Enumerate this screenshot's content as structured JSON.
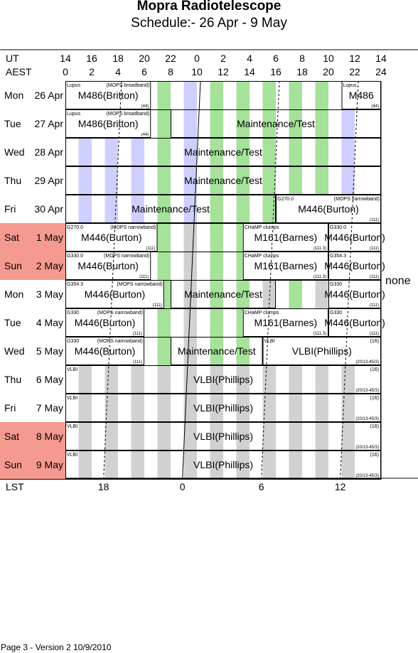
{
  "title": "Mopra Radiotelescope",
  "subtitle": "Schedule:- 26 Apr - 9  May",
  "axes": {
    "ut_label": "UT",
    "aest_label": "AEST",
    "ut_ticks": [
      "14",
      "16",
      "18",
      "20",
      "22",
      "0",
      "2",
      "4",
      "6",
      "8",
      "10",
      "12",
      "14"
    ],
    "aest_ticks": [
      "0",
      "2",
      "4",
      "6",
      "8",
      "10",
      "12",
      "14",
      "16",
      "18",
      "20",
      "22",
      "24"
    ],
    "lst_label": "LST",
    "lst_ticks": [
      {
        "label": "18",
        "aest": 2.9
      },
      {
        "label": "0",
        "aest": 8.9
      },
      {
        "label": "6",
        "aest": 14.9
      },
      {
        "label": "12",
        "aest": 20.9
      }
    ]
  },
  "colors": {
    "weekend": "#f59a90",
    "green": "#a6e29a",
    "blue": "#cfcfff",
    "gray": "#d1d1d1",
    "border": "#000000"
  },
  "bands": [
    {
      "color": "blue",
      "start": 1,
      "end": 2
    },
    {
      "color": "blue",
      "start": 3,
      "end": 4
    },
    {
      "color": "blue",
      "start": 5,
      "end": 6
    },
    {
      "color": "green",
      "start": 7,
      "end": 8
    },
    {
      "color": "blue",
      "start": 9,
      "end": 10
    },
    {
      "color": "green",
      "start": 11,
      "end": 12
    },
    {
      "color": "green",
      "start": 13,
      "end": 14
    },
    {
      "color": "green",
      "start": 15,
      "end": 16
    },
    {
      "color": "green",
      "start": 17,
      "end": 18
    },
    {
      "color": "green",
      "start": 19,
      "end": 20
    },
    {
      "color": "blue",
      "start": 21,
      "end": 22
    }
  ],
  "days": [
    {
      "name": "Mon",
      "date": "26 Apr",
      "weekend": false,
      "blocks": [
        {
          "start": 0,
          "end": 6.5,
          "main": "M486(Britton)",
          "tl": "Lupus",
          "tc": "(MOPS broadband)",
          "br": "(44)",
          "fill": "white"
        },
        {
          "start": 21,
          "end": 24,
          "main": "M486",
          "tl": "Lupus",
          "tc": "",
          "br": "(44)",
          "fill": "white"
        }
      ]
    },
    {
      "name": "Tue",
      "date": "27 Apr",
      "weekend": false,
      "blocks": [
        {
          "start": 0,
          "end": 6.5,
          "main": "M486(Britton)",
          "tl": "Lupus",
          "tc": "(MOPS broadband)",
          "br": "(44)",
          "fill": "white"
        },
        {
          "start": 8,
          "end": 24,
          "main": "Maintenance/Test",
          "tl": "",
          "tc": "",
          "br": "",
          "fill": "none"
        }
      ]
    },
    {
      "name": "Wed",
      "date": "28 Apr",
      "weekend": false,
      "blocks": [
        {
          "start": 0,
          "end": 24,
          "main": "Maintenance/Test",
          "tl": "",
          "tc": "",
          "br": "",
          "fill": "none"
        }
      ]
    },
    {
      "name": "Thu",
      "date": "29 Apr",
      "weekend": false,
      "blocks": [
        {
          "start": 0,
          "end": 24,
          "main": "Maintenance/Test",
          "tl": "",
          "tc": "",
          "br": "",
          "fill": "none"
        }
      ]
    },
    {
      "name": "Fri",
      "date": "30 Apr",
      "weekend": false,
      "blocks": [
        {
          "start": 0,
          "end": 16,
          "main": "Maintenance/Test",
          "tl": "",
          "tc": "",
          "br": "",
          "fill": "none"
        },
        {
          "start": 16,
          "end": 24,
          "main": "M446(Burton)",
          "tl": "G270.0",
          "tc": "(MOPS narrowband)",
          "br": "(111)",
          "fill": "white"
        }
      ]
    },
    {
      "name": "Sat",
      "date": "1 May",
      "weekend": true,
      "blocks": [
        {
          "start": 0,
          "end": 7,
          "main": "M446(Burton)",
          "tl": "G270.0",
          "tc": "(MOPS narrowband)",
          "br": "(111)",
          "fill": "white"
        },
        {
          "start": 13.5,
          "end": 20,
          "main": "M161(Barnes)",
          "tl": "CHaMP clumps",
          "tc": "",
          "br": "(111.3)",
          "fill": "white"
        },
        {
          "start": 20,
          "end": 24,
          "main": "M446(Burton)",
          "tl": "G330.0",
          "tc": "",
          "br": "(111)",
          "fill": "white"
        }
      ]
    },
    {
      "name": "Sun",
      "date": "2 May",
      "weekend": true,
      "blocks": [
        {
          "start": 0,
          "end": 6.5,
          "main": "M446(Burton)",
          "tl": "G330.0",
          "tc": "(MOPS narrowband)",
          "br": "(111)",
          "fill": "white"
        },
        {
          "start": 13.5,
          "end": 20,
          "main": "M161(Barnes)",
          "tl": "CHaMP clumps",
          "tc": "",
          "br": "(111.3)",
          "fill": "white"
        },
        {
          "start": 20,
          "end": 24,
          "main": "M446(Burton)",
          "tl": "G354.3",
          "tc": "",
          "br": "(111)",
          "fill": "white"
        }
      ]
    },
    {
      "name": "Mon",
      "date": "3 May",
      "weekend": false,
      "blocks": [
        {
          "start": 0,
          "end": 7.5,
          "main": "M446(Burton)",
          "tl": "G354.3",
          "tc": "(MOPS narrowband)",
          "br": "(111)",
          "fill": "white"
        },
        {
          "start": 8,
          "end": 16,
          "main": "Maintenance/Test",
          "tl": "",
          "tc": "",
          "br": "",
          "fill": "none"
        },
        {
          "start": 20,
          "end": 24,
          "main": "M446(Burton)",
          "tl": "G330",
          "tc": "",
          "br": "(111)",
          "fill": "white"
        }
      ]
    },
    {
      "name": "Tue",
      "date": "4 May",
      "weekend": false,
      "blocks": [
        {
          "start": 0,
          "end": 6,
          "main": "M446(Burton)",
          "tl": "G330",
          "tc": "(MOPS narrowband)",
          "br": "(111)",
          "fill": "white"
        },
        {
          "start": 13.5,
          "end": 20,
          "main": "M161(Barnes)",
          "tl": "CHaMP clumps",
          "tc": "",
          "br": "(111.3)",
          "fill": "white"
        },
        {
          "start": 20,
          "end": 24,
          "main": "M446(Burton)",
          "tl": "G330",
          "tc": "",
          "br": "(111)",
          "fill": "white"
        }
      ]
    },
    {
      "name": "Wed",
      "date": "5 May",
      "weekend": false,
      "blocks": [
        {
          "start": 0,
          "end": 6,
          "main": "M446(Burton)",
          "tl": "G330",
          "tc": "(MOPS narrowband)",
          "br": "(111)",
          "fill": "white"
        },
        {
          "start": 8,
          "end": 15,
          "main": "Maintenance/Test",
          "tl": "",
          "tc": "",
          "br": "",
          "fill": "none"
        },
        {
          "start": 15,
          "end": 24,
          "main": "VLBI(Phillips)",
          "tl": "VLBI",
          "tc": "",
          "tr": "(16)",
          "br": "(20/13-45/3)",
          "fill": "white"
        }
      ]
    },
    {
      "name": "Thu",
      "date": "6 May",
      "weekend": false,
      "blocks": [
        {
          "start": 0,
          "end": 24,
          "main": "VLBI(Phillips)",
          "tl": "VLBI",
          "tc": "",
          "tr": "(16)",
          "br": "(20/13-45/3)",
          "fill": "none"
        }
      ]
    },
    {
      "name": "Fri",
      "date": "7 May",
      "weekend": false,
      "blocks": [
        {
          "start": 0,
          "end": 24,
          "main": "VLBI(Phillips)",
          "tl": "VLBI",
          "tc": "",
          "tr": "(16)",
          "br": "(20/13-45/3)",
          "fill": "none"
        }
      ]
    },
    {
      "name": "Sat",
      "date": "8 May",
      "weekend": true,
      "blocks": [
        {
          "start": 0,
          "end": 24,
          "main": "VLBI(Phillips)",
          "tl": "VLBI",
          "tc": "",
          "tr": "(16)",
          "br": "(20/13-45/3)",
          "fill": "none"
        }
      ]
    },
    {
      "name": "Sun",
      "date": "9 May",
      "weekend": true,
      "blocks": [
        {
          "start": 0,
          "end": 24,
          "main": "VLBI(Phillips)",
          "tl": "VLBI",
          "tc": "",
          "tr": "(16)",
          "br": "(20/13-45/3)",
          "fill": "none"
        }
      ]
    }
  ],
  "side_note": "none",
  "footer": "Page 3 - Version 2  10/9/2010"
}
